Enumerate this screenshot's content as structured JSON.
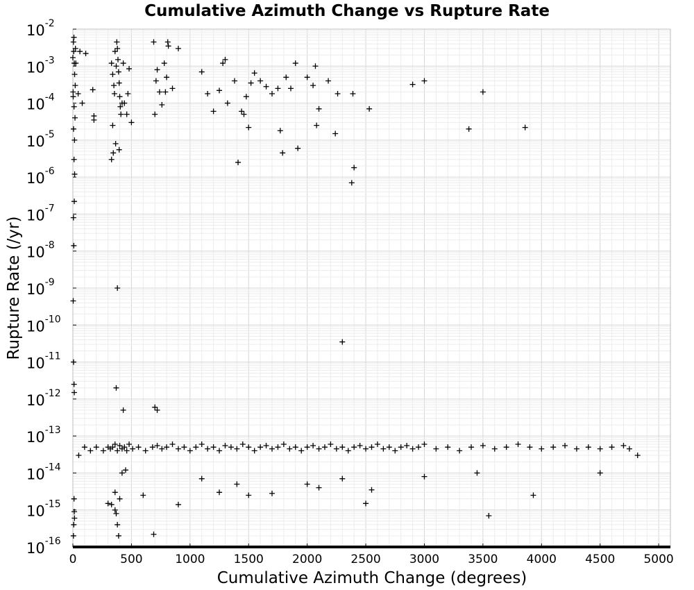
{
  "chart_data": {
    "type": "scatter",
    "title": "Cumulative Azimuth Change vs Rupture Rate",
    "xlabel": "Cumulative Azimuth Change (degrees)",
    "ylabel": "Rupture Rate (/yr)",
    "xlim": [
      0,
      5100
    ],
    "ylim": [
      1e-16,
      0.01
    ],
    "y_scale": "log",
    "grid": true,
    "marker": "plus",
    "marker_color": "#000000",
    "x_ticks": [
      "0",
      "500",
      "1000",
      "1500",
      "2000",
      "2500",
      "3000",
      "3500",
      "4000",
      "4500",
      "5000"
    ],
    "y_ticks": [
      {
        "base": "10",
        "exp": "-16"
      },
      {
        "base": "10",
        "exp": "-15"
      },
      {
        "base": "10",
        "exp": "-14"
      },
      {
        "base": "10",
        "exp": "-13"
      },
      {
        "base": "10",
        "exp": "-12"
      },
      {
        "base": "10",
        "exp": "-11"
      },
      {
        "base": "10",
        "exp": "-10"
      },
      {
        "base": "10",
        "exp": "-9"
      },
      {
        "base": "10",
        "exp": "-8"
      },
      {
        "base": "10",
        "exp": "-7"
      },
      {
        "base": "10",
        "exp": "-6"
      },
      {
        "base": "10",
        "exp": "-5"
      },
      {
        "base": "10",
        "exp": "-4"
      },
      {
        "base": "10",
        "exp": "-3"
      },
      {
        "base": "10",
        "exp": "-2"
      }
    ],
    "points": [
      [
        0,
        0.0017
      ],
      [
        5,
        0.0045
      ],
      [
        8,
        0.0025
      ],
      [
        12,
        0.0012
      ],
      [
        15,
        0.0006
      ],
      [
        20,
        0.0003
      ],
      [
        3,
        0.00015
      ],
      [
        10,
        8e-05
      ],
      [
        18,
        4e-05
      ],
      [
        6,
        2e-05
      ],
      [
        14,
        1e-05
      ],
      [
        22,
        0.003
      ],
      [
        25,
        0.0012
      ],
      [
        9,
        0.006
      ],
      [
        2,
        0.0002
      ],
      [
        10,
        3e-06
      ],
      [
        15,
        1.2e-06
      ],
      [
        12,
        2.2e-07
      ],
      [
        5,
        8e-08
      ],
      [
        8,
        1.4e-08
      ],
      [
        3,
        4.5e-10
      ],
      [
        6,
        1e-11
      ],
      [
        10,
        2.5e-12
      ],
      [
        12,
        1.5e-12
      ],
      [
        60,
        0.0025
      ],
      [
        110,
        0.0022
      ],
      [
        170,
        0.00023
      ],
      [
        180,
        4.5e-05
      ],
      [
        180,
        3.5e-05
      ],
      [
        45,
        0.00018
      ],
      [
        80,
        0.0001
      ],
      [
        330,
        0.0012
      ],
      [
        340,
        0.0006
      ],
      [
        350,
        0.0003
      ],
      [
        355,
        0.00018
      ],
      [
        360,
        0.0025
      ],
      [
        370,
        0.001
      ],
      [
        375,
        0.0045
      ],
      [
        380,
        0.003
      ],
      [
        385,
        0.0015
      ],
      [
        390,
        0.0007
      ],
      [
        395,
        0.00035
      ],
      [
        400,
        0.00015
      ],
      [
        405,
        8e-05
      ],
      [
        410,
        5e-05
      ],
      [
        420,
        0.0001
      ],
      [
        430,
        0.0012
      ],
      [
        440,
        0.0001
      ],
      [
        460,
        5e-05
      ],
      [
        470,
        0.00018
      ],
      [
        480,
        0.00085
      ],
      [
        500,
        3e-05
      ],
      [
        340,
        2.5e-05
      ],
      [
        345,
        4.5e-06
      ],
      [
        330,
        3e-06
      ],
      [
        365,
        8e-06
      ],
      [
        395,
        5.5e-06
      ],
      [
        380,
        1e-09
      ],
      [
        690,
        0.0045
      ],
      [
        700,
        5e-05
      ],
      [
        710,
        0.0004
      ],
      [
        720,
        0.0008
      ],
      [
        740,
        0.0002
      ],
      [
        760,
        9e-05
      ],
      [
        780,
        0.0012
      ],
      [
        790,
        0.0002
      ],
      [
        800,
        0.0005
      ],
      [
        810,
        0.0045
      ],
      [
        815,
        0.0035
      ],
      [
        850,
        0.00025
      ],
      [
        900,
        0.003
      ],
      [
        1100,
        0.0007
      ],
      [
        1150,
        0.00018
      ],
      [
        1200,
        6e-05
      ],
      [
        1250,
        0.00022
      ],
      [
        1280,
        0.0012
      ],
      [
        1300,
        0.0015
      ],
      [
        1320,
        0.0001
      ],
      [
        1380,
        0.0004
      ],
      [
        1410,
        2.5e-06
      ],
      [
        1440,
        6e-05
      ],
      [
        1460,
        5e-05
      ],
      [
        1480,
        0.00015
      ],
      [
        1500,
        2.2e-05
      ],
      [
        1520,
        0.00035
      ],
      [
        1550,
        0.00065
      ],
      [
        1600,
        0.0004
      ],
      [
        1650,
        0.00028
      ],
      [
        1700,
        0.00018
      ],
      [
        1750,
        0.00025
      ],
      [
        1770,
        1.8e-05
      ],
      [
        1790,
        4.5e-06
      ],
      [
        1820,
        0.0005
      ],
      [
        1860,
        0.00025
      ],
      [
        1900,
        0.0012
      ],
      [
        1920,
        6e-06
      ],
      [
        2000,
        0.0005
      ],
      [
        2050,
        0.0003
      ],
      [
        2070,
        0.001
      ],
      [
        2080,
        2.5e-05
      ],
      [
        2100,
        7e-05
      ],
      [
        2180,
        0.0004
      ],
      [
        2240,
        1.5e-05
      ],
      [
        2260,
        0.00018
      ],
      [
        2380,
        7e-07
      ],
      [
        2400,
        1.8e-06
      ],
      [
        2390,
        0.00018
      ],
      [
        2530,
        7e-05
      ],
      [
        2900,
        0.00032
      ],
      [
        3000,
        0.0004
      ],
      [
        3500,
        0.0002
      ],
      [
        3380,
        2e-05
      ],
      [
        3860,
        2.2e-05
      ],
      [
        2300,
        3.5e-11
      ],
      [
        370,
        2e-12
      ],
      [
        700,
        6e-13
      ],
      [
        720,
        5e-13
      ],
      [
        430,
        5e-13
      ],
      [
        50,
        3e-14
      ],
      [
        100,
        5e-14
      ],
      [
        150,
        4e-14
      ],
      [
        200,
        5e-14
      ],
      [
        260,
        4e-14
      ],
      [
        300,
        5e-14
      ],
      [
        320,
        4.5e-14
      ],
      [
        340,
        5e-14
      ],
      [
        360,
        6e-14
      ],
      [
        380,
        4e-14
      ],
      [
        400,
        5.5e-14
      ],
      [
        420,
        4.5e-14
      ],
      [
        440,
        5e-14
      ],
      [
        460,
        4e-14
      ],
      [
        480,
        6e-14
      ],
      [
        510,
        4.5e-14
      ],
      [
        560,
        5e-14
      ],
      [
        620,
        4e-14
      ],
      [
        680,
        5e-14
      ],
      [
        720,
        5.5e-14
      ],
      [
        760,
        4.5e-14
      ],
      [
        800,
        5e-14
      ],
      [
        850,
        6e-14
      ],
      [
        900,
        4.5e-14
      ],
      [
        950,
        5e-14
      ],
      [
        1000,
        4e-14
      ],
      [
        1050,
        5e-14
      ],
      [
        1100,
        6e-14
      ],
      [
        1150,
        4.5e-14
      ],
      [
        1200,
        5e-14
      ],
      [
        1250,
        4e-14
      ],
      [
        1300,
        5.5e-14
      ],
      [
        1350,
        5e-14
      ],
      [
        1400,
        4.5e-14
      ],
      [
        1450,
        6e-14
      ],
      [
        1500,
        5e-14
      ],
      [
        1550,
        4e-14
      ],
      [
        1600,
        5e-14
      ],
      [
        1650,
        5.5e-14
      ],
      [
        1700,
        4.5e-14
      ],
      [
        1750,
        5e-14
      ],
      [
        1800,
        6e-14
      ],
      [
        1850,
        4.5e-14
      ],
      [
        1900,
        5e-14
      ],
      [
        1950,
        4e-14
      ],
      [
        2000,
        5e-14
      ],
      [
        2050,
        5.5e-14
      ],
      [
        2100,
        4.5e-14
      ],
      [
        2150,
        5e-14
      ],
      [
        2200,
        6e-14
      ],
      [
        2250,
        4.5e-14
      ],
      [
        2300,
        5e-14
      ],
      [
        2350,
        4e-14
      ],
      [
        2400,
        5e-14
      ],
      [
        2450,
        5.5e-14
      ],
      [
        2500,
        4.5e-14
      ],
      [
        2550,
        5e-14
      ],
      [
        2600,
        6e-14
      ],
      [
        2650,
        4.5e-14
      ],
      [
        2700,
        5e-14
      ],
      [
        2750,
        4e-14
      ],
      [
        2800,
        5e-14
      ],
      [
        2850,
        5.5e-14
      ],
      [
        2900,
        4.5e-14
      ],
      [
        2950,
        5e-14
      ],
      [
        3000,
        6e-14
      ],
      [
        3100,
        4.5e-14
      ],
      [
        3200,
        5e-14
      ],
      [
        3300,
        4e-14
      ],
      [
        3400,
        5e-14
      ],
      [
        3500,
        5.5e-14
      ],
      [
        3600,
        4.5e-14
      ],
      [
        3700,
        5e-14
      ],
      [
        3800,
        6e-14
      ],
      [
        3900,
        5e-14
      ],
      [
        4000,
        4.5e-14
      ],
      [
        4100,
        5e-14
      ],
      [
        4200,
        5.5e-14
      ],
      [
        4300,
        4.5e-14
      ],
      [
        4400,
        5e-14
      ],
      [
        4500,
        4.5e-14
      ],
      [
        4600,
        5e-14
      ],
      [
        4700,
        5.5e-14
      ],
      [
        4750,
        4.5e-14
      ],
      [
        4820,
        3e-14
      ],
      [
        300,
        1.5e-15
      ],
      [
        360,
        3e-15
      ],
      [
        400,
        2e-15
      ],
      [
        420,
        1e-14
      ],
      [
        450,
        1.2e-14
      ],
      [
        600,
        2.5e-15
      ],
      [
        900,
        1.4e-15
      ],
      [
        1100,
        7e-15
      ],
      [
        1250,
        3e-15
      ],
      [
        1400,
        5e-15
      ],
      [
        1500,
        2.5e-15
      ],
      [
        1700,
        2.8e-15
      ],
      [
        2000,
        5e-15
      ],
      [
        2100,
        4e-15
      ],
      [
        2300,
        7e-15
      ],
      [
        2500,
        1.5e-15
      ],
      [
        2550,
        3.5e-15
      ],
      [
        3000,
        8e-15
      ],
      [
        3450,
        1e-14
      ],
      [
        3550,
        7e-16
      ],
      [
        3930,
        2.5e-15
      ],
      [
        4500,
        1e-14
      ],
      [
        330,
        1.4e-15
      ],
      [
        360,
        1e-15
      ],
      [
        370,
        8e-16
      ],
      [
        380,
        4e-16
      ],
      [
        390,
        2e-16
      ],
      [
        690,
        2.2e-16
      ],
      [
        10,
        2e-15
      ],
      [
        12,
        9e-16
      ],
      [
        14,
        6e-16
      ],
      [
        8,
        4e-16
      ],
      [
        5,
        2e-16
      ]
    ],
    "floor_band": {
      "y": 1e-16,
      "x_from": 0,
      "x_to": 5100
    }
  }
}
